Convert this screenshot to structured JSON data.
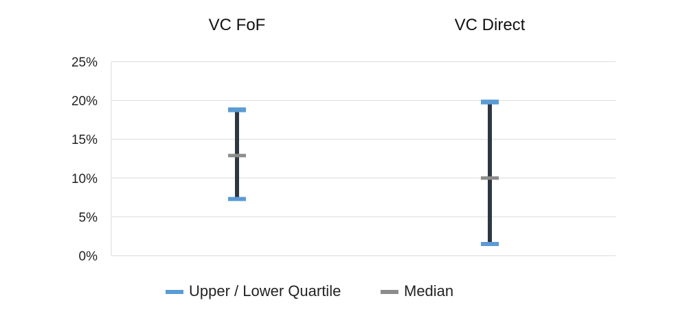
{
  "chart_data": {
    "type": "range",
    "categories": [
      "VC FoF",
      "VC Direct"
    ],
    "series": [
      {
        "name": "Upper / Lower Quartile",
        "upper": [
          18.8,
          19.8
        ],
        "lower": [
          7.3,
          1.5
        ]
      },
      {
        "name": "Median",
        "values": [
          12.9,
          10.0
        ]
      }
    ],
    "yticks": [
      "0%",
      "5%",
      "10%",
      "15%",
      "20%",
      "25%"
    ],
    "ylim": [
      0,
      25
    ],
    "grid": true,
    "legend": "bottom",
    "colors": {
      "quartile": "#5b9bd5",
      "median": "#8c8c8c",
      "stem": "#2e3641",
      "grid": "#d9d9d9"
    }
  }
}
